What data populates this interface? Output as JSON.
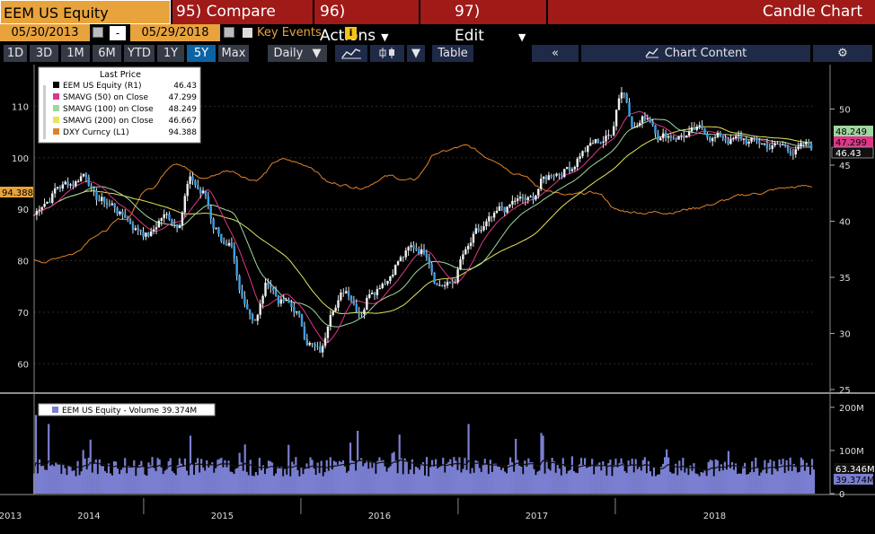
{
  "toolbar": {
    "ticker": "EEM US Equity",
    "compare": "95) Compare",
    "actions": "96) Actions",
    "edit": "97) Edit",
    "chart_type": "Candle Chart"
  },
  "dates": {
    "start": "05/30/2013",
    "separator": "-",
    "end": "05/29/2018",
    "key_events": "Key Events",
    "info": "i"
  },
  "periods": [
    "1D",
    "3D",
    "1M",
    "6M",
    "YTD",
    "1Y",
    "5Y",
    "Max"
  ],
  "active_period": "5Y",
  "frequency": "Daily",
  "table_label": "Table",
  "collapse_label": "«",
  "chart_content_label": "Chart Content",
  "icons": {
    "line": "line-chart-icon",
    "candle": "candlestick-icon",
    "settings": "gear-icon",
    "calendar": "calendar-icon",
    "dropdown": "dropdown-caret-icon"
  },
  "colors": {
    "candle": "#f0f0f0",
    "sma50": "#e0368a",
    "sma100": "#9fd7a0",
    "sma200": "#e6e45a",
    "dxy": "#e0822a",
    "volume": "#7a7fd1",
    "volume_avg": "#000000",
    "active_tab": "#0c63a4",
    "toolbar_red": "#a01a18",
    "toolbar_orange": "#e8a33d"
  },
  "legend": {
    "title": "Last Price",
    "items": [
      {
        "label": "EEM US Equity  (R1)",
        "value": "46.43",
        "color": "#000000"
      },
      {
        "label": "SMAVG (50) on Close",
        "value": "47.299",
        "color": "#e0368a"
      },
      {
        "label": "SMAVG (100) on Close",
        "value": "48.249",
        "color": "#9fd7a0"
      },
      {
        "label": "SMAVG (200) on Close",
        "value": "46.667",
        "color": "#e6e45a"
      },
      {
        "label": "DXY Curncy  (L1)",
        "value": "94.388",
        "color": "#e0822a"
      }
    ]
  },
  "volume_legend": "EEM US Equity - Volume 39.374M",
  "left_axis": {
    "ticks": [
      "110",
      "100",
      "90",
      "80",
      "70",
      "60"
    ]
  },
  "right_axis": {
    "ticks": [
      "50",
      "45",
      "40",
      "35",
      "30",
      "25"
    ]
  },
  "volume_axis": {
    "ticks": [
      "200M",
      "100M",
      "0"
    ]
  },
  "x_axis": {
    "years": [
      "2013",
      "2014",
      "2015",
      "2016",
      "2017",
      "2018"
    ]
  },
  "tags": {
    "dxy": "94.388",
    "sma100": "48.249",
    "sma50": "47.299",
    "last": "46.43",
    "vol_avg": "63.346M",
    "vol_last": "39.374M"
  },
  "chart_data": {
    "type": "candlestick",
    "x_range": [
      "2013-05-30",
      "2018-05-29"
    ],
    "price_series": {
      "name": "EEM US Equity",
      "axis": "right",
      "ylim": [
        25,
        53
      ],
      "points": [
        [
          "2013-05",
          40.5
        ],
        [
          "2013-06",
          37.5
        ],
        [
          "2013-07",
          38.8
        ],
        [
          "2013-08",
          37.8
        ],
        [
          "2013-09",
          40.5
        ],
        [
          "2013-10",
          41.5
        ],
        [
          "2013-11",
          41.0
        ],
        [
          "2013-12",
          40.5
        ],
        [
          "2014-01",
          39.0
        ],
        [
          "2014-02",
          37.5
        ],
        [
          "2014-03",
          40.0
        ],
        [
          "2014-04",
          40.5
        ],
        [
          "2014-05",
          42.0
        ],
        [
          "2014-06",
          43.2
        ],
        [
          "2014-07",
          43.5
        ],
        [
          "2014-08",
          44.5
        ],
        [
          "2014-09",
          42.0
        ],
        [
          "2014-10",
          41.5
        ],
        [
          "2014-11",
          40.5
        ],
        [
          "2014-12",
          39.5
        ],
        [
          "2015-01",
          39.0
        ],
        [
          "2015-02",
          40.5
        ],
        [
          "2015-03",
          40.0
        ],
        [
          "2015-04",
          43.8
        ],
        [
          "2015-05",
          42.5
        ],
        [
          "2015-06",
          39.5
        ],
        [
          "2015-07",
          37.5
        ],
        [
          "2015-08",
          32.5
        ],
        [
          "2015-09",
          31.5
        ],
        [
          "2015-10",
          34.5
        ],
        [
          "2015-11",
          33.0
        ],
        [
          "2015-12",
          32.0
        ],
        [
          "2016-01",
          29.5
        ],
        [
          "2016-02",
          28.2
        ],
        [
          "2016-03",
          33.0
        ],
        [
          "2016-04",
          34.0
        ],
        [
          "2016-05",
          32.5
        ],
        [
          "2016-06",
          34.5
        ],
        [
          "2016-07",
          35.5
        ],
        [
          "2016-08",
          37.0
        ],
        [
          "2016-09",
          37.5
        ],
        [
          "2016-10",
          37.5
        ],
        [
          "2016-11",
          35.0
        ],
        [
          "2016-12",
          34.5
        ],
        [
          "2017-01",
          37.0
        ],
        [
          "2017-02",
          38.5
        ],
        [
          "2017-03",
          39.5
        ],
        [
          "2017-04",
          40.5
        ],
        [
          "2017-05",
          41.5
        ],
        [
          "2017-06",
          41.5
        ],
        [
          "2017-07",
          43.5
        ],
        [
          "2017-08",
          44.5
        ],
        [
          "2017-09",
          45.0
        ],
        [
          "2017-10",
          46.5
        ],
        [
          "2017-11",
          47.0
        ],
        [
          "2017-12",
          47.5
        ],
        [
          "2018-01",
          52.0
        ],
        [
          "2018-02",
          49.0
        ],
        [
          "2018-03",
          49.5
        ],
        [
          "2018-04",
          48.0
        ],
        [
          "2018-05",
          46.43
        ]
      ]
    },
    "sma50": {
      "name": "SMAVG (50) on Close",
      "last": 47.299
    },
    "sma100": {
      "name": "SMAVG (100) on Close",
      "last": 48.249
    },
    "sma200": {
      "name": "SMAVG (200) on Close",
      "last": 46.667
    },
    "dxy_series": {
      "name": "DXY Curncy",
      "axis": "left",
      "ylim": [
        55,
        116
      ],
      "points": [
        [
          "2013-05",
          83.5
        ],
        [
          "2013-07",
          82.5
        ],
        [
          "2013-09",
          80.5
        ],
        [
          "2013-11",
          81.0
        ],
        [
          "2014-01",
          81.0
        ],
        [
          "2014-03",
          80.0
        ],
        [
          "2014-05",
          80.0
        ],
        [
          "2014-07",
          81.5
        ],
        [
          "2014-09",
          85.5
        ],
        [
          "2014-11",
          88.0
        ],
        [
          "2015-01",
          94.5
        ],
        [
          "2015-03",
          99.5
        ],
        [
          "2015-05",
          96.0
        ],
        [
          "2015-07",
          97.5
        ],
        [
          "2015-09",
          96.0
        ],
        [
          "2015-11",
          99.5
        ],
        [
          "2016-01",
          98.5
        ],
        [
          "2016-03",
          95.0
        ],
        [
          "2016-05",
          94.5
        ],
        [
          "2016-07",
          96.5
        ],
        [
          "2016-09",
          95.5
        ],
        [
          "2016-11",
          101.0
        ],
        [
          "2017-01",
          102.0
        ],
        [
          "2017-03",
          100.0
        ],
        [
          "2017-05",
          97.5
        ],
        [
          "2017-07",
          94.0
        ],
        [
          "2017-09",
          92.5
        ],
        [
          "2017-11",
          93.0
        ],
        [
          "2018-01",
          89.5
        ],
        [
          "2018-03",
          89.5
        ],
        [
          "2018-05",
          94.388
        ]
      ]
    },
    "volume": {
      "name": "EEM US Equity - Volume",
      "last": "39.374M",
      "average_last": "63.346M",
      "ylim": [
        0,
        210
      ],
      "units": "M"
    }
  }
}
